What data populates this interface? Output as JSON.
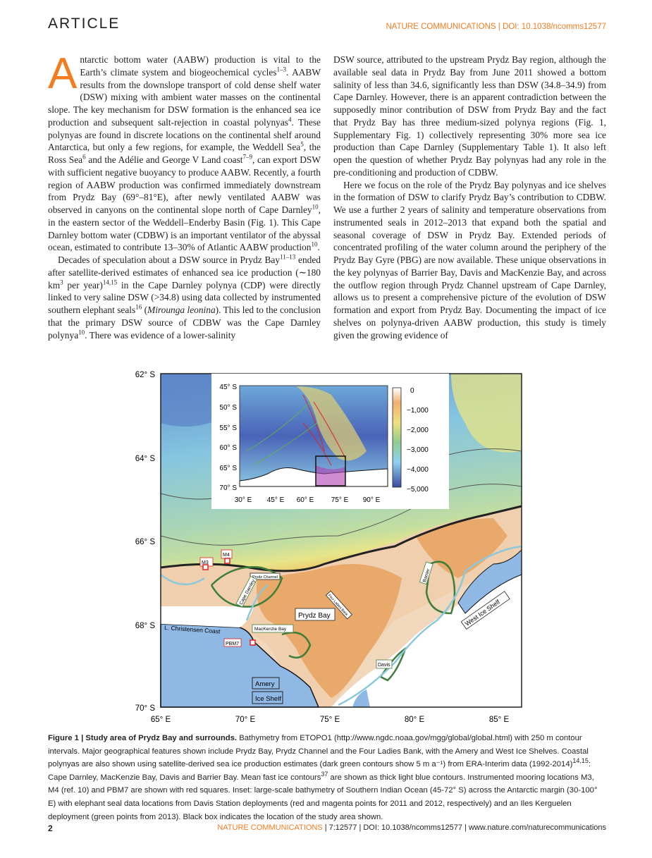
{
  "header": {
    "section": "ARTICLE",
    "journal_doi": "NATURE COMMUNICATIONS | DOI: 10.1038/ncomms12577"
  },
  "body": {
    "left": {
      "dropcap": "A",
      "p1": "ntarctic bottom water (AABW) production is vital to the Earth’s climate system and biogeochemical cycles",
      "p1_ref1": "1–3",
      "p1b": ". AABW results from the downslope transport of cold dense shelf water (DSW) mixing with ambient water masses on the continental slope. The key mechanism for DSW formation is the enhanced sea ice production and subsequent salt-rejection in coastal polynyas",
      "p1_ref2": "4",
      "p1c": ". These polynyas are found in discrete locations on the continental shelf around Antarctica, but only a few regions, for example, the Weddell Sea",
      "p1_ref3": "5",
      "p1d": ", the Ross Sea",
      "p1_ref4": "6",
      "p1e": " and the Adélie and George V Land coast",
      "p1_ref5": "7–9",
      "p1f": ", can export DSW with sufficient negative buoyancy to produce AABW. Recently, a fourth region of AABW production was confirmed immediately downstream from Prydz Bay (69°–81°E), after newly ventilated AABW was observed in canyons on the continental slope north of Cape Darnley",
      "p1_ref6": "10",
      "p1g": ", in the eastern sector of the Weddell–Enderby Basin (Fig. 1). This Cape Darnley bottom water (CDBW) is an important ventilator of the abyssal ocean, estimated to contribute 13–30% of Atlantic AABW production",
      "p1_ref7": "10",
      "p1h": ".",
      "p2": "Decades of speculation about a DSW source in Prydz Bay",
      "p2_ref1": "11–13",
      "p2b": " ended after satellite-derived estimates of enhanced sea ice production (∼180 km",
      "p2_sup": "3",
      "p2c": " per year)",
      "p2_ref2": "14,15",
      "p2d": " in the Cape Darnley polynya (CDP) were directly linked to very saline DSW (>34.8) using data collected by instrumented southern elephant seals",
      "p2_ref3": "16",
      "p2e": " (",
      "p2_italic": "Mirounga leonina",
      "p2f": "). This led to the conclusion that the primary DSW source of CDBW was the Cape Darnley polynya",
      "p2_ref4": "10",
      "p2g": ". There was evidence of a lower-salinity"
    },
    "right": {
      "p1": "DSW source, attributed to the upstream Prydz Bay region, although the available seal data in Prydz Bay from June 2011 showed a bottom salinity of less than 34.6, significantly less than DSW (34.8–34.9) from Cape Darnley. However, there is an apparent contradiction between the supposedly minor contribution of DSW from Prydz Bay and the fact that Prydz Bay has three medium-sized polynya regions (Fig. 1, Supplementary Fig. 1) collectively representing 30% more sea ice production than Cape Darnley (Supplementary Table 1). It also left open the question of whether Prydz Bay polynyas had any role in the pre-conditioning and production of CDBW.",
      "p2": "Here we focus on the role of the Prydz Bay polynyas and ice shelves in the formation of DSW to clarify Prydz Bay’s contribution to CDBW. We use a further 2 years of salinity and temperature observations from instrumented seals in 2012–2013 that expand both the spatial and seasonal coverage of DSW in Prydz Bay. Extended periods of concentrated profiling of the water column around the periphery of the Prydz Bay Gyre (PBG) are now available. These unique observations in the key polynyas of Barrier Bay, Davis and MacKenzie Bay, and across the outflow region through Prydz Channel upstream of Cape Darnley, allows us to present a comprehensive picture of the evolution of DSW formation and export from Prydz Bay. Documenting the impact of ice shelves on polynya-driven AABW production, this study is timely given the growing evidence of"
    }
  },
  "figure": {
    "lat_ticks": [
      "62° S",
      "64° S",
      "66° S",
      "68° S",
      "70° S"
    ],
    "lon_ticks": [
      "65° E",
      "70° E",
      "75° E",
      "80° E",
      "85° E"
    ],
    "labels": {
      "m3": "M3",
      "m4": "M4",
      "pbm7": "PBM7",
      "prydz_channel": "Prydz Channel",
      "cape_darnley": "Cape Darnley",
      "four_ladies": "Four Ladies Bank",
      "barrier": "Barrier",
      "prydz_bay": "Prydz Bay",
      "west_ice_shelf": "West Ice Shelf",
      "christensen": "L. Christensen Coast",
      "mackenzie": "MacKenzie Bay",
      "davis": "Davis",
      "amery1": "Amery",
      "amery2": "Ice Shelf"
    },
    "inset": {
      "lat_ticks": [
        "45° S",
        "50° S",
        "55° S",
        "60° S",
        "65° S",
        "70° S"
      ],
      "lon_ticks": [
        "30° E",
        "45° E",
        "60° E",
        "75° E",
        "90° E"
      ],
      "colorbar_ticks": [
        "0",
        "−1,000",
        "−2,000",
        "−3,000",
        "−4,000",
        "−5,000"
      ]
    },
    "colors": {
      "deep": "#5b7fc0",
      "mid": "#8fcfd8",
      "green": "#a9d3a0",
      "yellow": "#e9e68a",
      "shelf": "#e8a868",
      "shelf_light": "#f2cfab",
      "ice": "#8fb8e4",
      "polynya": "#3e7d3a",
      "fast_ice": "#8cc8dc",
      "mooring": "#e02020"
    }
  },
  "caption": {
    "title": "Figure 1 | Study area of Prydz Bay and surrounds.",
    "text": " Bathymetry from ETOPO1 (http://www.ngdc.noaa.gov/mgg/global/global.html) with 250 m contour intervals. Major geographical features shown include Prydz Bay, Prydz Channel and the Four Ladies Bank, with the Amery and West Ice Shelves. Coastal polynyas are also shown using satellite-derived sea ice production estimates (dark green contours show 5 m a⁻¹) from ERA-Interim data (1992-2014)",
    "ref1": "14,15",
    "text2": ": Cape Darnley, MacKenzie Bay, Davis and Barrier Bay. Mean fast ice contours",
    "ref2": "37",
    "text3": " are shown as thick light blue contours. Instrumented mooring locations M3, M4 (ref. 10) and PBM7 are shown with red squares. Inset: large-scale bathymetry of Southern Indian Ocean (45-72° S) across the Antarctic margin (30-100° E) with elephant seal data locations from Davis Station deployments (red and magenta points for 2011 and 2012, respectively) and an Iles Kerguelen deployment (green points from 2013). Black box indicates the location of the study area shown."
  },
  "footer": {
    "page": "2",
    "journal": "NATURE COMMUNICATIONS",
    "info": " | 7:12577 | DOI: 10.1038/ncomms12577 | www.nature.com/naturecommunications"
  }
}
